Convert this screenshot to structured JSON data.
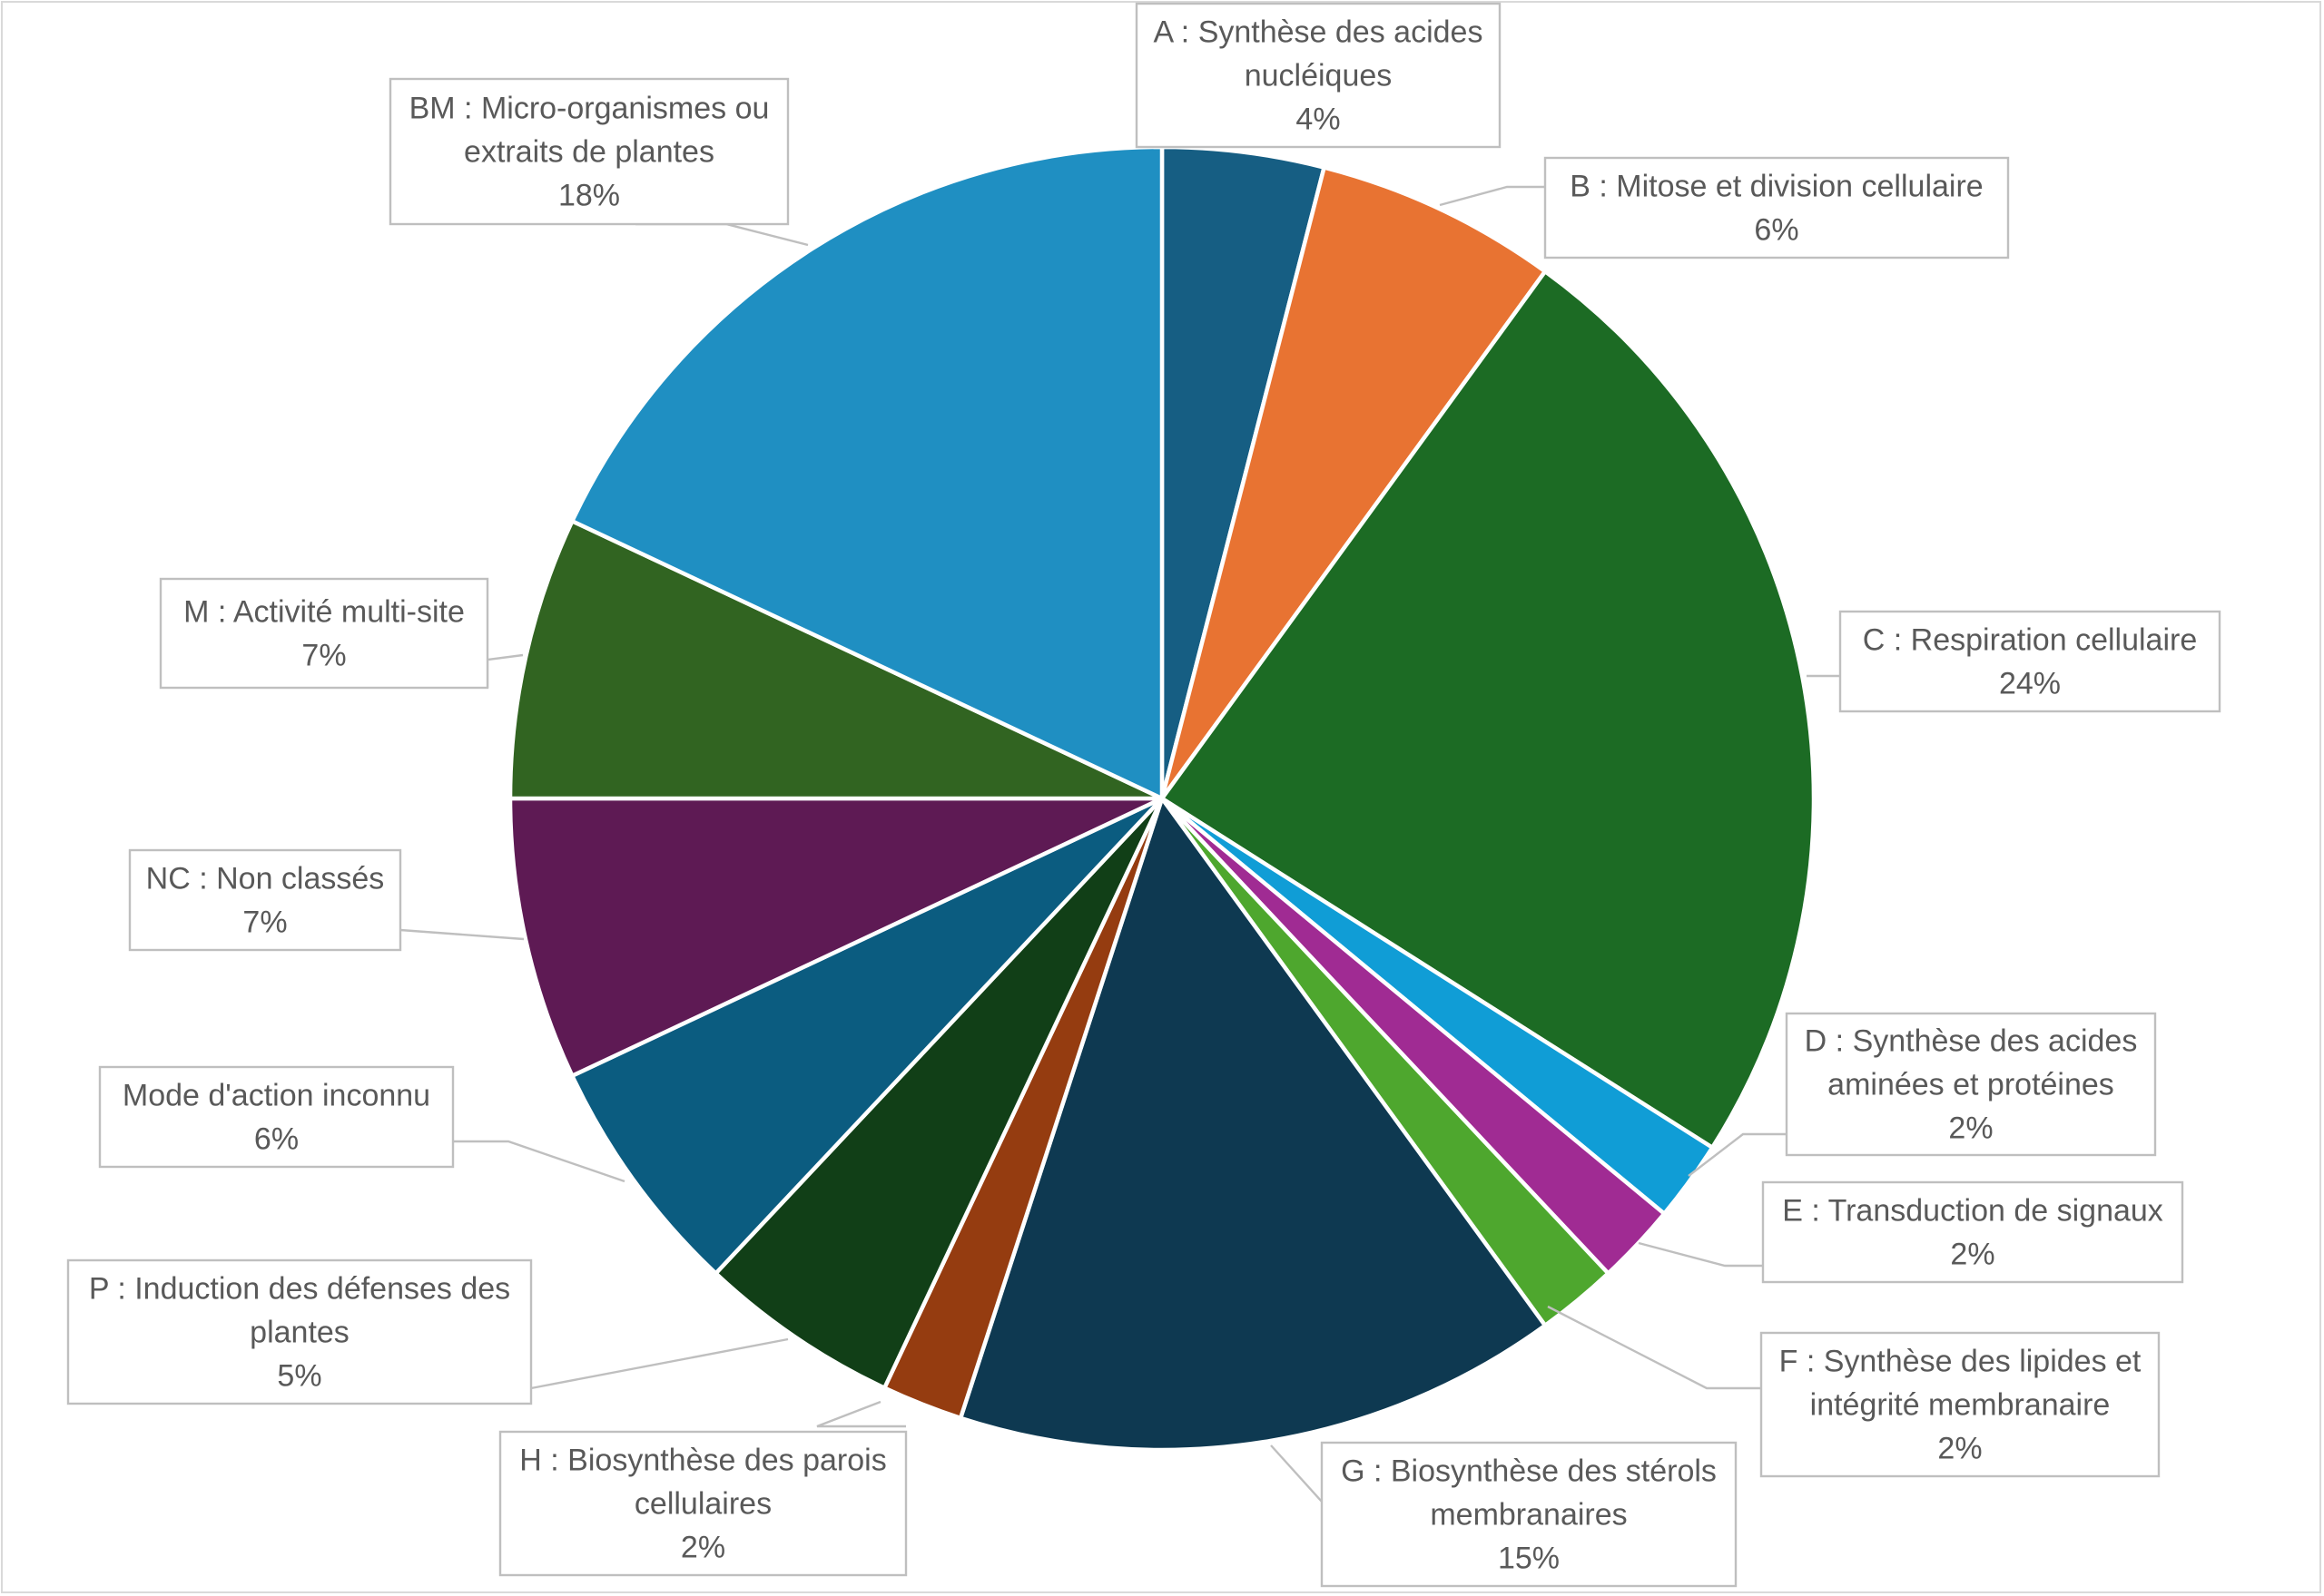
{
  "chart_data": {
    "type": "pie",
    "title": "",
    "start_angle_deg": 0,
    "direction": "clockwise",
    "data_labels": "category : percentage",
    "slices": [
      {
        "category": "A : Synthèse des acides nucléiques",
        "lines": [
          "A : Synthèse des acides",
          "nucléiques"
        ],
        "percent_label": "4%",
        "value": 4,
        "color": "#165e83"
      },
      {
        "category": "B : Mitose et division cellulaire",
        "lines": [
          "B : Mitose et division cellulaire"
        ],
        "percent_label": "6%",
        "value": 6,
        "color": "#e87332"
      },
      {
        "category": "C : Respiration cellulaire",
        "lines": [
          "C : Respiration cellulaire"
        ],
        "percent_label": "24%",
        "value": 24,
        "color": "#1c6b24"
      },
      {
        "category": "D : Synthèse des acides aminées et protéines",
        "lines": [
          "D : Synthèse des acides",
          "aminées et protéines"
        ],
        "percent_label": "2%",
        "value": 2,
        "color": "#109dd6"
      },
      {
        "category": "E : Transduction de signaux",
        "lines": [
          "E : Transduction de signaux"
        ],
        "percent_label": "2%",
        "value": 2,
        "color": "#a02b93"
      },
      {
        "category": "F : Synthèse des lipides et intégrité membranaire",
        "lines": [
          "F : Synthèse des lipides et",
          "intégrité membranaire"
        ],
        "percent_label": "2%",
        "value": 2,
        "color": "#4ea72e"
      },
      {
        "category": "G : Biosynthèse des stérols membranaires",
        "lines": [
          "G : Biosynthèse des stérols",
          "membranaires"
        ],
        "percent_label": "15%",
        "value": 15,
        "color": "#0e3951"
      },
      {
        "category": "H : Biosynthèse des parois cellulaires",
        "lines": [
          "H : Biosynthèse des parois",
          "cellulaires"
        ],
        "percent_label": "2%",
        "value": 2,
        "color": "#953c10"
      },
      {
        "category": "P : Induction des défenses des plantes",
        "lines": [
          "P : Induction des défenses des",
          "plantes"
        ],
        "percent_label": "5%",
        "value": 5,
        "color": "#113f17"
      },
      {
        "category": "Mode d'action inconnu",
        "lines": [
          "Mode d'action inconnu"
        ],
        "percent_label": "6%",
        "value": 6,
        "color": "#0b5c80"
      },
      {
        "category": "NC : Non classés",
        "lines": [
          "NC : Non classés"
        ],
        "percent_label": "7%",
        "value": 7,
        "color": "#5e1a54"
      },
      {
        "category": "M : Activité multi-site",
        "lines": [
          "M : Activité multi-site"
        ],
        "percent_label": "7%",
        "value": 7,
        "color": "#316421"
      },
      {
        "category": "BM : Micro-organismes ou extraits de plantes",
        "lines": [
          "BM : Micro-organismes ou",
          "extraits de plantes"
        ],
        "percent_label": "18%",
        "value": 18,
        "color": "#1f8fc2"
      }
    ]
  }
}
